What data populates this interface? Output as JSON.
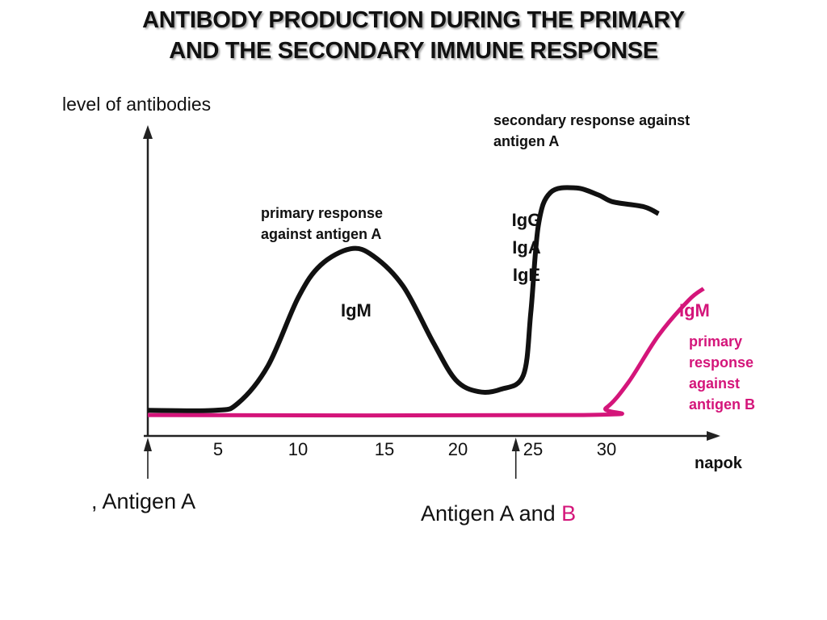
{
  "title": {
    "line1": "ANTIBODY PRODUCTION DURING THE PRIMARY",
    "line2": "AND THE SECONDARY IMMUNE RESPONSE"
  },
  "colors": {
    "antigen_a": "#111111",
    "antigen_b": "#d4157a"
  },
  "chart_data": {
    "type": "line",
    "ylabel": "level of antibodies",
    "xlabel": "napok",
    "xlim": [
      0,
      38
    ],
    "ylim": [
      0,
      100
    ],
    "x_ticks": [
      "5",
      "10",
      "15",
      "20",
      "25",
      "30"
    ],
    "grid": false,
    "legend": "none",
    "series": [
      {
        "color": "#111111",
        "points": [
          [
            0,
            3
          ],
          [
            4.5,
            3
          ],
          [
            6,
            6
          ],
          [
            8,
            22
          ],
          [
            10,
            51
          ],
          [
            11.5,
            65
          ],
          [
            13.5,
            72
          ],
          [
            15,
            69
          ],
          [
            17,
            56
          ],
          [
            19,
            32
          ],
          [
            20.5,
            16
          ],
          [
            22,
            11
          ],
          [
            23.5,
            12
          ],
          [
            25,
            18
          ],
          [
            25.5,
            45
          ],
          [
            26,
            82
          ],
          [
            26.8,
            96
          ],
          [
            28.5,
            98
          ],
          [
            30,
            95
          ],
          [
            31,
            92
          ],
          [
            33,
            90
          ],
          [
            34,
            87
          ]
        ]
      },
      {
        "color": "#d4157a",
        "points": [
          [
            0,
            1
          ],
          [
            29,
            1
          ],
          [
            30.5,
            4
          ],
          [
            32,
            15
          ],
          [
            34,
            35
          ],
          [
            36,
            50
          ],
          [
            37,
            55
          ]
        ]
      }
    ],
    "annotations": {
      "primary_a": [
        "primary response",
        "against antigen A"
      ],
      "primary_a_class": "IgM",
      "secondary_a": [
        "secondary response against",
        "antigen A"
      ],
      "secondary_a_classes": [
        "IgG",
        "IgA",
        "IgE"
      ],
      "b_class": "IgM",
      "primary_b": [
        "primary",
        "response",
        "against",
        "antigen B"
      ]
    },
    "events": [
      {
        "day": 0,
        "label": ", Antigen A"
      },
      {
        "day": 24.5,
        "label_prefix": "Antigen A and ",
        "label_highlight": "B"
      }
    ]
  }
}
